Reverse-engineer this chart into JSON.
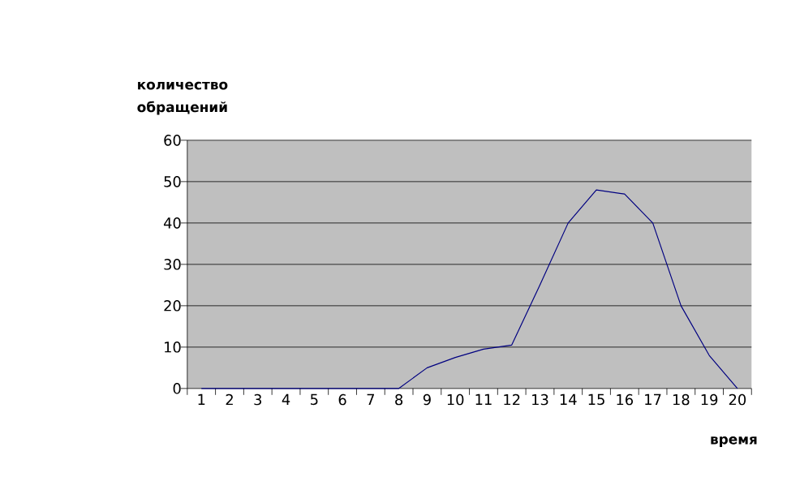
{
  "chart_data": {
    "type": "line",
    "xlabel": "время",
    "ylabel": "количество обращений",
    "categories": [
      "1",
      "2",
      "3",
      "4",
      "5",
      "6",
      "7",
      "8",
      "9",
      "10",
      "11",
      "12",
      "13",
      "14",
      "15",
      "16",
      "17",
      "18",
      "19",
      "20"
    ],
    "series": [
      {
        "color": "#000080",
        "values": [
          0,
          0,
          0,
          0,
          0,
          0,
          0,
          0,
          5,
          7.5,
          9.5,
          10.5,
          25,
          40,
          48,
          47,
          40,
          20,
          8,
          0
        ]
      }
    ],
    "ylim": [
      0,
      60
    ],
    "yticks": [
      0,
      10,
      20,
      30,
      40,
      50,
      60
    ],
    "grid": "y",
    "marker": "none",
    "line_style": "solid"
  }
}
